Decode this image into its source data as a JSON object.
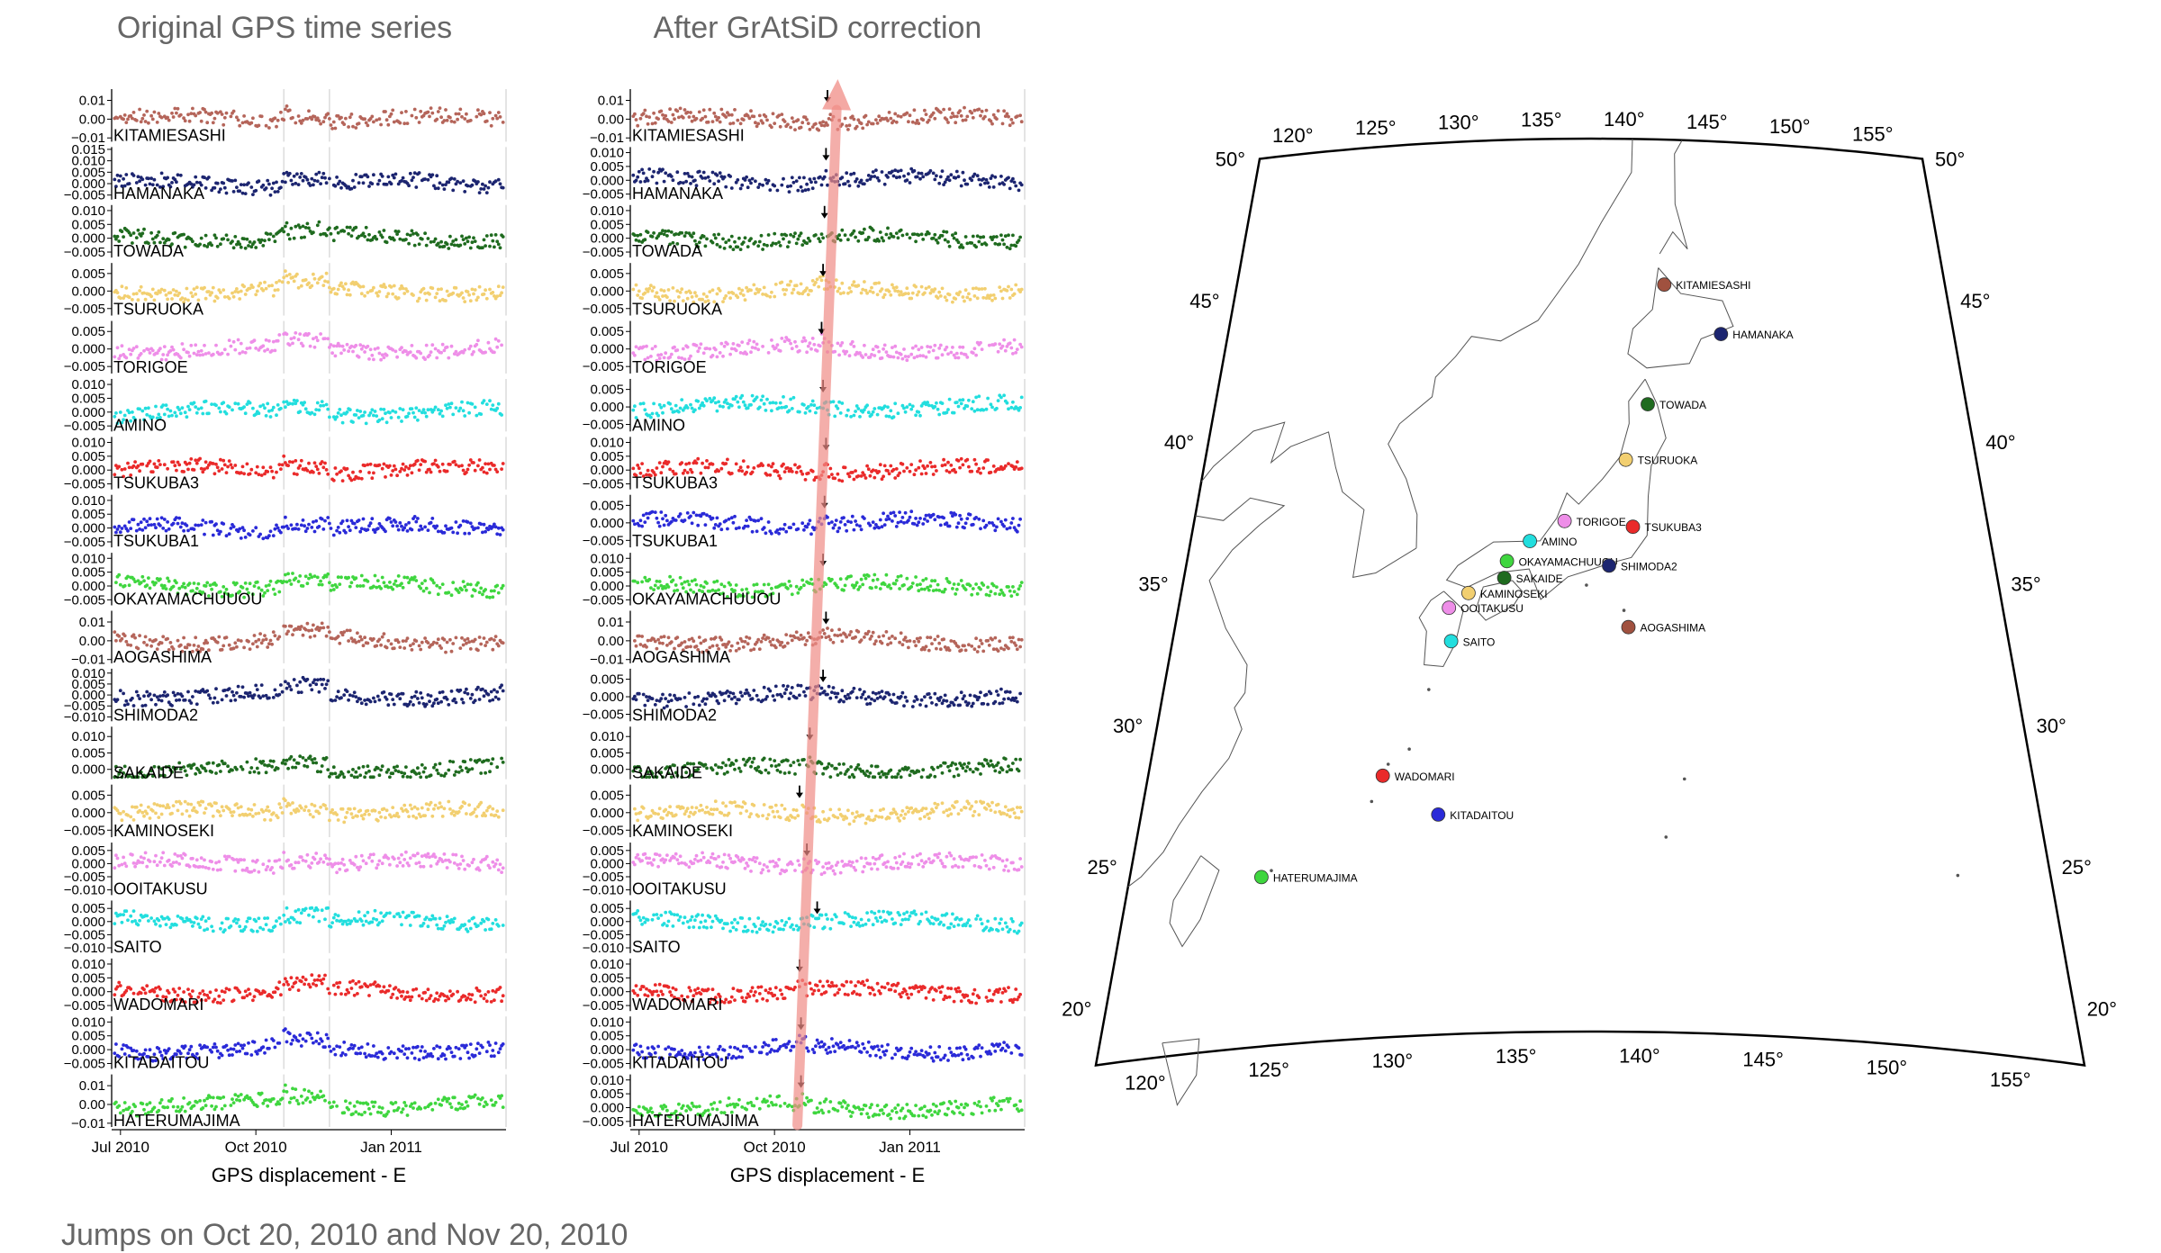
{
  "titles": {
    "left": "Original GPS time series",
    "middle": "After GrAtSiD correction",
    "footnote": "Jumps on Oct 20, 2010 and Nov 20, 2010"
  },
  "chart_data": [
    {
      "type": "scatter",
      "title": "Original GPS time series",
      "xlabel": "GPS displacement - E",
      "x_ticks": [
        "Jul 2010",
        "Oct 2010",
        "Jan 2011"
      ],
      "x_range": [
        "2010-06-25",
        "2011-03-20"
      ],
      "jump_dates": [
        "2010-10-20",
        "2010-11-20"
      ],
      "stations": [
        {
          "name": "KITAMIESASHI",
          "color": "#b5655a",
          "ticks": [
            "0.01",
            "0.00",
            "−0.01"
          ],
          "ylim": [
            -0.012,
            0.016
          ]
        },
        {
          "name": "HAMANAKA",
          "color": "#1c2570",
          "ticks": [
            "0.015",
            "0.010",
            "0.005",
            "0.000",
            "−0.005"
          ],
          "ylim": [
            -0.007,
            0.016
          ]
        },
        {
          "name": "TOWADA",
          "color": "#1f6b1f",
          "ticks": [
            "0.010",
            "0.005",
            "0.000",
            "−0.005"
          ],
          "ylim": [
            -0.007,
            0.012
          ]
        },
        {
          "name": "TSURUOKA",
          "color": "#f2cf70",
          "ticks": [
            "0.005",
            "0.000",
            "−0.005"
          ],
          "ylim": [
            -0.007,
            0.008
          ]
        },
        {
          "name": "TORIGOE",
          "color": "#ee8ee8",
          "ticks": [
            "0.005",
            "0.000",
            "−0.005"
          ],
          "ylim": [
            -0.007,
            0.008
          ]
        },
        {
          "name": "AMINO",
          "color": "#22dede",
          "ticks": [
            "0.010",
            "0.005",
            "0.000",
            "−0.005"
          ],
          "ylim": [
            -0.007,
            0.012
          ]
        },
        {
          "name": "TSUKUBA3",
          "color": "#ea2a2a",
          "ticks": [
            "0.010",
            "0.005",
            "0.000",
            "−0.005"
          ],
          "ylim": [
            -0.007,
            0.012
          ]
        },
        {
          "name": "TSUKUBA1",
          "color": "#2a2ad8",
          "ticks": [
            "0.010",
            "0.005",
            "0.000",
            "−0.005"
          ],
          "ylim": [
            -0.007,
            0.012
          ]
        },
        {
          "name": "OKAYAMACHUUOU",
          "color": "#3fd63f",
          "ticks": [
            "0.010",
            "0.005",
            "0.000",
            "−0.005"
          ],
          "ylim": [
            -0.007,
            0.012
          ]
        },
        {
          "name": "AOGASHIMA",
          "color": "#b5655a",
          "ticks": [
            "0.01",
            "0.00",
            "−0.01"
          ],
          "ylim": [
            -0.012,
            0.016
          ]
        },
        {
          "name": "SHIMODA2",
          "color": "#1c2570",
          "ticks": [
            "0.010",
            "0.005",
            "0.000",
            "−0.005",
            "−0.010"
          ],
          "ylim": [
            -0.012,
            0.012
          ]
        },
        {
          "name": "SAKAIDE",
          "color": "#1f6b1f",
          "ticks": [
            "0.010",
            "0.005",
            "0.000"
          ],
          "ylim": [
            -0.003,
            0.013
          ]
        },
        {
          "name": "KAMINOSEKI",
          "color": "#f2cf70",
          "ticks": [
            "0.005",
            "0.000",
            "−0.005"
          ],
          "ylim": [
            -0.007,
            0.008
          ]
        },
        {
          "name": "OOITAKUSU",
          "color": "#ee8ee8",
          "ticks": [
            "0.005",
            "0.000",
            "−0.005",
            "−0.010"
          ],
          "ylim": [
            -0.012,
            0.008
          ]
        },
        {
          "name": "SAITO",
          "color": "#22dede",
          "ticks": [
            "0.005",
            "0.000",
            "−0.005",
            "−0.010"
          ],
          "ylim": [
            -0.012,
            0.008
          ]
        },
        {
          "name": "WADOMARI",
          "color": "#ea2a2a",
          "ticks": [
            "0.010",
            "0.005",
            "0.000",
            "−0.005"
          ],
          "ylim": [
            -0.007,
            0.012
          ]
        },
        {
          "name": "KITADAITOU",
          "color": "#2a2ad8",
          "ticks": [
            "0.010",
            "0.005",
            "0.000",
            "−0.005"
          ],
          "ylim": [
            -0.007,
            0.012
          ]
        },
        {
          "name": "HATERUMAJIMA",
          "color": "#3fd63f",
          "ticks": [
            "0.01",
            "0.00",
            "−0.01"
          ],
          "ylim": [
            -0.012,
            0.016
          ]
        }
      ]
    },
    {
      "type": "scatter",
      "title": "After GrAtSiD correction",
      "xlabel": "GPS displacement - E",
      "x_ticks": [
        "Jul 2010",
        "Oct 2010",
        "Jan 2011"
      ],
      "x_range": [
        "2010-06-25",
        "2011-03-20"
      ],
      "annotations": "Black arrows mark the detected jump date at each station; a red arrow runs upward through the stations from HATERUMAJIMA to KITAMIESASHI.",
      "detected_jump_dates": {
        "KITAMIESASHI": "2010-11-06",
        "HAMANAKA": "2010-11-05",
        "TOWADA": "2010-11-04",
        "TSURUOKA": "2010-11-03",
        "TORIGOE": "2010-11-02",
        "AMINO": "2010-11-03",
        "TSUKUBA3": "2010-11-05",
        "TSUKUBA1": "2010-11-04",
        "OKAYAMACHUUOU": "2010-11-03",
        "AOGASHIMA": "2010-11-05",
        "SHIMODA2": "2010-11-03",
        "SAKAIDE": "2010-10-25",
        "KAMINOSEKI": "2010-10-18",
        "OOITAKUSU": "2010-10-23",
        "SAITO": "2010-10-30",
        "WADOMARI": "2010-10-18",
        "KITADAITOU": "2010-10-19",
        "HATERUMAJIMA": "2010-10-19"
      },
      "stations": [
        {
          "name": "KITAMIESASHI",
          "color": "#b5655a",
          "ticks": [
            "0.01",
            "0.00",
            "−0.01"
          ],
          "ylim": [
            -0.012,
            0.016
          ]
        },
        {
          "name": "HAMANAKA",
          "color": "#1c2570",
          "ticks": [
            "0.010",
            "0.005",
            "0.000",
            "−0.005"
          ],
          "ylim": [
            -0.007,
            0.012
          ]
        },
        {
          "name": "TOWADA",
          "color": "#1f6b1f",
          "ticks": [
            "0.010",
            "0.005",
            "0.000",
            "−0.005"
          ],
          "ylim": [
            -0.007,
            0.012
          ]
        },
        {
          "name": "TSURUOKA",
          "color": "#f2cf70",
          "ticks": [
            "0.005",
            "0.000",
            "−0.005"
          ],
          "ylim": [
            -0.007,
            0.008
          ]
        },
        {
          "name": "TORIGOE",
          "color": "#ee8ee8",
          "ticks": [
            "0.005",
            "0.000",
            "−0.005"
          ],
          "ylim": [
            -0.007,
            0.008
          ]
        },
        {
          "name": "AMINO",
          "color": "#22dede",
          "ticks": [
            "0.005",
            "0.000",
            "−0.005"
          ],
          "ylim": [
            -0.007,
            0.008
          ]
        },
        {
          "name": "TSUKUBA3",
          "color": "#ea2a2a",
          "ticks": [
            "0.010",
            "0.005",
            "0.000",
            "−0.005"
          ],
          "ylim": [
            -0.007,
            0.012
          ]
        },
        {
          "name": "TSUKUBA1",
          "color": "#2a2ad8",
          "ticks": [
            "0.005",
            "0.000",
            "−0.005"
          ],
          "ylim": [
            -0.007,
            0.008
          ]
        },
        {
          "name": "OKAYAMACHUUOU",
          "color": "#3fd63f",
          "ticks": [
            "0.010",
            "0.005",
            "0.000",
            "−0.005"
          ],
          "ylim": [
            -0.007,
            0.012
          ]
        },
        {
          "name": "AOGASHIMA",
          "color": "#b5655a",
          "ticks": [
            "0.01",
            "0.00",
            "−0.01"
          ],
          "ylim": [
            -0.012,
            0.016
          ]
        },
        {
          "name": "SHIMODA2",
          "color": "#1c2570",
          "ticks": [
            "0.005",
            "0.000",
            "−0.005"
          ],
          "ylim": [
            -0.007,
            0.008
          ]
        },
        {
          "name": "SAKAIDE",
          "color": "#1f6b1f",
          "ticks": [
            "0.010",
            "0.005",
            "0.000"
          ],
          "ylim": [
            -0.003,
            0.013
          ]
        },
        {
          "name": "KAMINOSEKI",
          "color": "#f2cf70",
          "ticks": [
            "0.005",
            "0.000",
            "−0.005"
          ],
          "ylim": [
            -0.007,
            0.008
          ]
        },
        {
          "name": "OOITAKUSU",
          "color": "#ee8ee8",
          "ticks": [
            "0.005",
            "0.000",
            "−0.005",
            "−0.010"
          ],
          "ylim": [
            -0.012,
            0.008
          ]
        },
        {
          "name": "SAITO",
          "color": "#22dede",
          "ticks": [
            "0.005",
            "0.000",
            "−0.005",
            "−0.010"
          ],
          "ylim": [
            -0.012,
            0.008
          ]
        },
        {
          "name": "WADOMARI",
          "color": "#ea2a2a",
          "ticks": [
            "0.010",
            "0.005",
            "0.000",
            "−0.005"
          ],
          "ylim": [
            -0.007,
            0.012
          ]
        },
        {
          "name": "KITADAITOU",
          "color": "#2a2ad8",
          "ticks": [
            "0.010",
            "0.005",
            "0.000",
            "−0.005"
          ],
          "ylim": [
            -0.007,
            0.012
          ]
        },
        {
          "name": "HATERUMAJIMA",
          "color": "#3fd63f",
          "ticks": [
            "0.010",
            "0.005",
            "0.000",
            "−0.005"
          ],
          "ylim": [
            -0.007,
            0.012
          ]
        }
      ]
    },
    {
      "type": "map",
      "projection": "conic (lon 118–158°E, lat 18–50°N)",
      "graticule": {
        "top_lon_labels": [
          "120°",
          "125°",
          "130°",
          "135°",
          "140°",
          "145°",
          "150°",
          "155°"
        ],
        "bottom_lon_labels": [
          "120°",
          "125°",
          "130°",
          "135°",
          "140°",
          "145°",
          "150°",
          "155°"
        ],
        "left_lat_labels": [
          "50°",
          "45°",
          "40°",
          "35°",
          "30°",
          "25°",
          "20°"
        ],
        "right_lat_labels": [
          "50°",
          "45°",
          "40°",
          "35°",
          "30°",
          "25°",
          "20°"
        ]
      },
      "stations": [
        {
          "name": "KITAMIESASHI",
          "lon": 142.1,
          "lat": 44.8,
          "color": "#a0513f"
        },
        {
          "name": "HAMANAKA",
          "lon": 145.1,
          "lat": 43.1,
          "color": "#1c2570"
        },
        {
          "name": "TOWADA",
          "lon": 141.0,
          "lat": 40.5,
          "color": "#1f6b1f"
        },
        {
          "name": "TSURUOKA",
          "lon": 139.8,
          "lat": 38.5,
          "color": "#f2cf70"
        },
        {
          "name": "TORIGOE",
          "lon": 136.7,
          "lat": 36.3,
          "color": "#ee8ee8"
        },
        {
          "name": "TSUKUBA3",
          "lon": 140.1,
          "lat": 36.1,
          "color": "#ea2a2a"
        },
        {
          "name": "AMINO",
          "lon": 135.0,
          "lat": 35.6,
          "color": "#22dede"
        },
        {
          "name": "OKAYAMACHUUOU",
          "lon": 133.9,
          "lat": 34.9,
          "color": "#3fd63f"
        },
        {
          "name": "SHIMODA2",
          "lon": 138.9,
          "lat": 34.7,
          "color": "#1c2570"
        },
        {
          "name": "SAKAIDE",
          "lon": 133.8,
          "lat": 34.3,
          "color": "#1f6b1f"
        },
        {
          "name": "KAMINOSEKI",
          "lon": 132.1,
          "lat": 33.8,
          "color": "#f2cf70"
        },
        {
          "name": "OOITAKUSU",
          "lon": 131.2,
          "lat": 33.3,
          "color": "#ee8ee8"
        },
        {
          "name": "AOGASHIMA",
          "lon": 139.8,
          "lat": 32.5,
          "color": "#a0513f"
        },
        {
          "name": "SAITO",
          "lon": 131.4,
          "lat": 32.1,
          "color": "#22dede"
        },
        {
          "name": "WADOMARI",
          "lon": 128.7,
          "lat": 27.4,
          "color": "#ea2a2a"
        },
        {
          "name": "KITADAITOU",
          "lon": 131.3,
          "lat": 25.9,
          "color": "#2a2ad8"
        },
        {
          "name": "HATERUMAJIMA",
          "lon": 123.8,
          "lat": 24.1,
          "color": "#3fd63f"
        }
      ]
    }
  ]
}
